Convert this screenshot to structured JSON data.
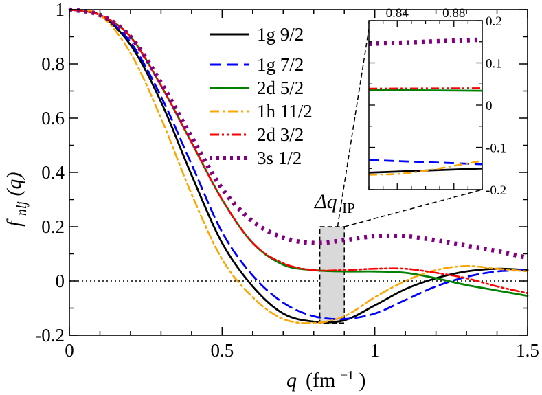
{
  "chart_data": [
    {
      "type": "line",
      "id": "main",
      "xlabel": {
        "symbol": "q",
        "unit": "(fm",
        "exp": "−1",
        "close": ")"
      },
      "ylabel": {
        "symbol": "f",
        "sub": "nlj",
        "arg": " (q)"
      },
      "xlim": [
        0,
        1.5
      ],
      "ylim": [
        -0.2,
        1.0
      ],
      "xticks": [
        0,
        0.5,
        1,
        1.5
      ],
      "xtick_labels": [
        "0",
        "0.5",
        "1",
        "1.5"
      ],
      "yticks": [
        -0.2,
        0,
        0.2,
        0.4,
        0.6,
        0.8,
        1.0
      ],
      "ytick_labels": [
        "-0.2",
        "0",
        "0.2",
        "0.4",
        "0.6",
        "0.8",
        "1"
      ],
      "zero_line": true,
      "annotation": {
        "label": "Δq",
        "sub": "IP",
        "x_range": [
          0.82,
          0.9
        ],
        "y_range": [
          -0.155,
          0.2
        ]
      },
      "series": [
        {
          "name": "1g 9/2",
          "color": "#000000",
          "style": "solid",
          "x": [
            0,
            0.1,
            0.2,
            0.3,
            0.4,
            0.5,
            0.6,
            0.7,
            0.8,
            0.9,
            1.0,
            1.1,
            1.2,
            1.3,
            1.4,
            1.5
          ],
          "y": [
            1.0,
            0.98,
            0.87,
            0.66,
            0.39,
            0.14,
            -0.02,
            -0.12,
            -0.15,
            -0.145,
            -0.09,
            -0.03,
            0.01,
            0.035,
            0.045,
            0.04
          ]
        },
        {
          "name": "1g 7/2",
          "color": "#0000ff",
          "style": "dash",
          "x": [
            0,
            0.1,
            0.2,
            0.3,
            0.4,
            0.5,
            0.6,
            0.7,
            0.8,
            0.9,
            1.0,
            1.1,
            1.2,
            1.3,
            1.4,
            1.5
          ],
          "y": [
            1.0,
            0.98,
            0.88,
            0.68,
            0.43,
            0.18,
            0.02,
            -0.08,
            -0.13,
            -0.14,
            -0.12,
            -0.07,
            -0.02,
            0.015,
            0.035,
            0.04
          ]
        },
        {
          "name": "2d 5/2",
          "color": "#008000",
          "style": "solid",
          "x": [
            0,
            0.1,
            0.2,
            0.3,
            0.4,
            0.5,
            0.6,
            0.7,
            0.8,
            0.9,
            1.0,
            1.1,
            1.2,
            1.3,
            1.4,
            1.5
          ],
          "y": [
            1.0,
            0.98,
            0.9,
            0.72,
            0.51,
            0.3,
            0.14,
            0.06,
            0.04,
            0.035,
            0.035,
            0.03,
            0.01,
            -0.015,
            -0.035,
            -0.055
          ]
        },
        {
          "name": "1h 11/2",
          "color": "#ffa500",
          "style": "dashdot",
          "x": [
            0,
            0.1,
            0.2,
            0.3,
            0.4,
            0.5,
            0.6,
            0.7,
            0.8,
            0.9,
            1.0,
            1.1,
            1.2,
            1.3,
            1.4,
            1.5
          ],
          "y": [
            1.0,
            0.98,
            0.84,
            0.6,
            0.32,
            0.08,
            -0.06,
            -0.14,
            -0.155,
            -0.13,
            -0.06,
            0.0,
            0.04,
            0.055,
            0.045,
            0.035
          ]
        },
        {
          "name": "2d 3/2",
          "color": "#ff0000",
          "style": "dashdotdot",
          "x": [
            0,
            0.1,
            0.2,
            0.3,
            0.4,
            0.5,
            0.6,
            0.7,
            0.8,
            0.9,
            1.0,
            1.1,
            1.2,
            1.3,
            1.4,
            1.5
          ],
          "y": [
            1.0,
            0.98,
            0.9,
            0.72,
            0.51,
            0.3,
            0.14,
            0.065,
            0.04,
            0.04,
            0.045,
            0.045,
            0.03,
            0.01,
            -0.02,
            -0.045
          ]
        },
        {
          "name": "3s 1/2",
          "color": "#800080",
          "style": "dot",
          "x": [
            0,
            0.1,
            0.2,
            0.3,
            0.4,
            0.5,
            0.6,
            0.7,
            0.8,
            0.9,
            1.0,
            1.1,
            1.2,
            1.3,
            1.4,
            1.5
          ],
          "y": [
            1.0,
            0.98,
            0.9,
            0.73,
            0.53,
            0.34,
            0.22,
            0.16,
            0.14,
            0.15,
            0.165,
            0.165,
            0.15,
            0.13,
            0.11,
            0.085
          ]
        }
      ]
    },
    {
      "type": "line",
      "id": "inset",
      "xlim": [
        0.82,
        0.9
      ],
      "ylim": [
        -0.2,
        0.2
      ],
      "xticks": [
        0.84,
        0.88
      ],
      "xtick_labels": [
        "0.84",
        "0.88"
      ],
      "yticks": [
        -0.2,
        -0.1,
        0,
        0.1,
        0.2
      ],
      "ytick_labels": [
        "-0.2",
        "-0.1",
        "0",
        "0.1",
        "0.2"
      ],
      "series": [
        {
          "name": "1g 9/2",
          "x": [
            0.82,
            0.9
          ],
          "y": [
            -0.16,
            -0.15
          ]
        },
        {
          "name": "1g 7/2",
          "x": [
            0.82,
            0.9
          ],
          "y": [
            -0.13,
            -0.14
          ]
        },
        {
          "name": "2d 5/2",
          "x": [
            0.82,
            0.9
          ],
          "y": [
            0.036,
            0.034
          ]
        },
        {
          "name": "1h 11/2",
          "x": [
            0.82,
            0.85,
            0.9
          ],
          "y": [
            -0.165,
            -0.16,
            -0.132
          ]
        },
        {
          "name": "2d 3/2",
          "x": [
            0.82,
            0.9
          ],
          "y": [
            0.039,
            0.04
          ]
        },
        {
          "name": "3s 1/2",
          "x": [
            0.82,
            0.9
          ],
          "y": [
            0.145,
            0.155
          ]
        }
      ]
    }
  ]
}
